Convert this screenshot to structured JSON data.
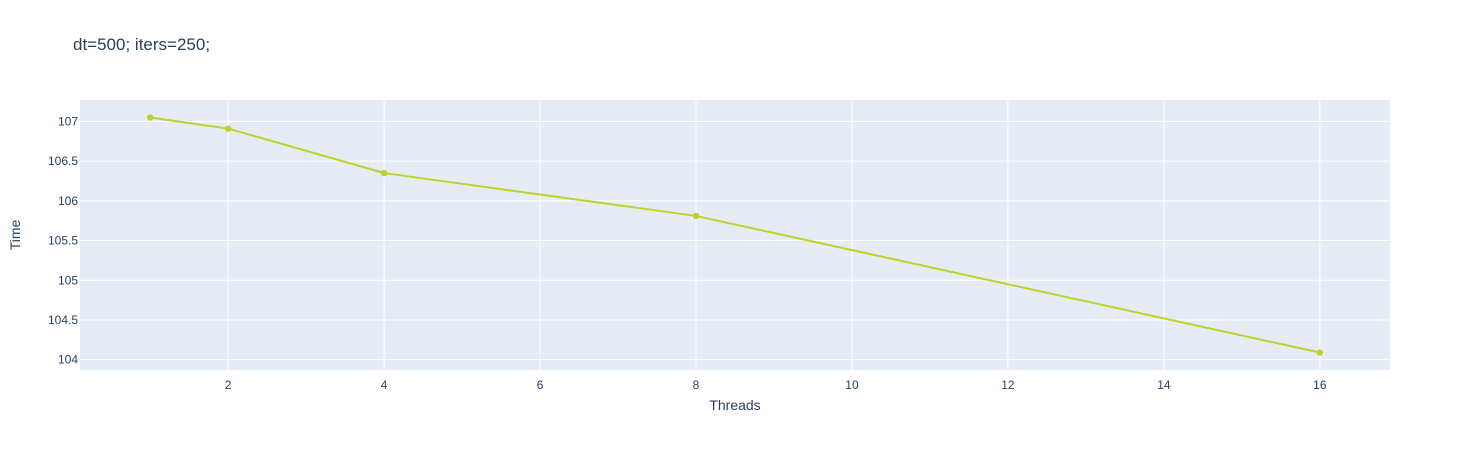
{
  "chart_data": {
    "type": "line",
    "title": "dt=500; iters=250;",
    "xlabel": "Threads",
    "ylabel": "Time",
    "x": [
      1,
      2,
      4,
      8,
      16
    ],
    "series": [
      {
        "values": [
          107.05,
          106.91,
          106.35,
          105.81,
          104.09
        ],
        "color": "#bcd42a"
      }
    ],
    "xlim": [
      0.1,
      16.9
    ],
    "ylim": [
      103.87,
      107.27
    ],
    "xticks": [
      2,
      4,
      6,
      8,
      10,
      12,
      14,
      16
    ],
    "xtick_labels": [
      "2",
      "4",
      "6",
      "8",
      "10",
      "12",
      "14",
      "16"
    ],
    "yticks": [
      104,
      104.5,
      105,
      105.5,
      106,
      106.5,
      107
    ],
    "ytick_labels": [
      "104",
      "104.5",
      "105",
      "105.5",
      "106",
      "106.5",
      "107"
    ],
    "grid": true,
    "markers": true,
    "background_color": "#e5ecf6",
    "grid_color": "#ffffff",
    "text_color": "#2a3f5f"
  }
}
